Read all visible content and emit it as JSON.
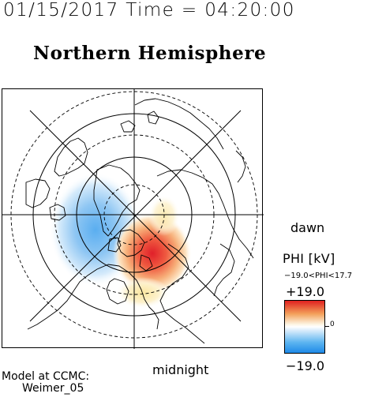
{
  "header": {
    "timestamp": "01/15/2017 Time = 04:20:00",
    "title": "Northern Hemisphere"
  },
  "map": {
    "projection": "polar stereographic, north pole centered",
    "label_bottom": "midnight",
    "label_right": "dawn",
    "field_max_region": "post-midnight / dawn sector, positive potential (red)",
    "field_min_region": "pre-midnight / dusk sector, negative potential (blue)"
  },
  "legend": {
    "title": "PHI [kV]",
    "range_text": "−19.0<PHI<17.7",
    "max_label": "+19.0",
    "min_label": "−19.0",
    "zero_label": "0",
    "colors": {
      "high": "#e02020",
      "mid": "#ffffff",
      "low": "#1f8ae8"
    }
  },
  "credit": {
    "line1": "Model at CCMC:",
    "line2": "Weimer_05"
  }
}
